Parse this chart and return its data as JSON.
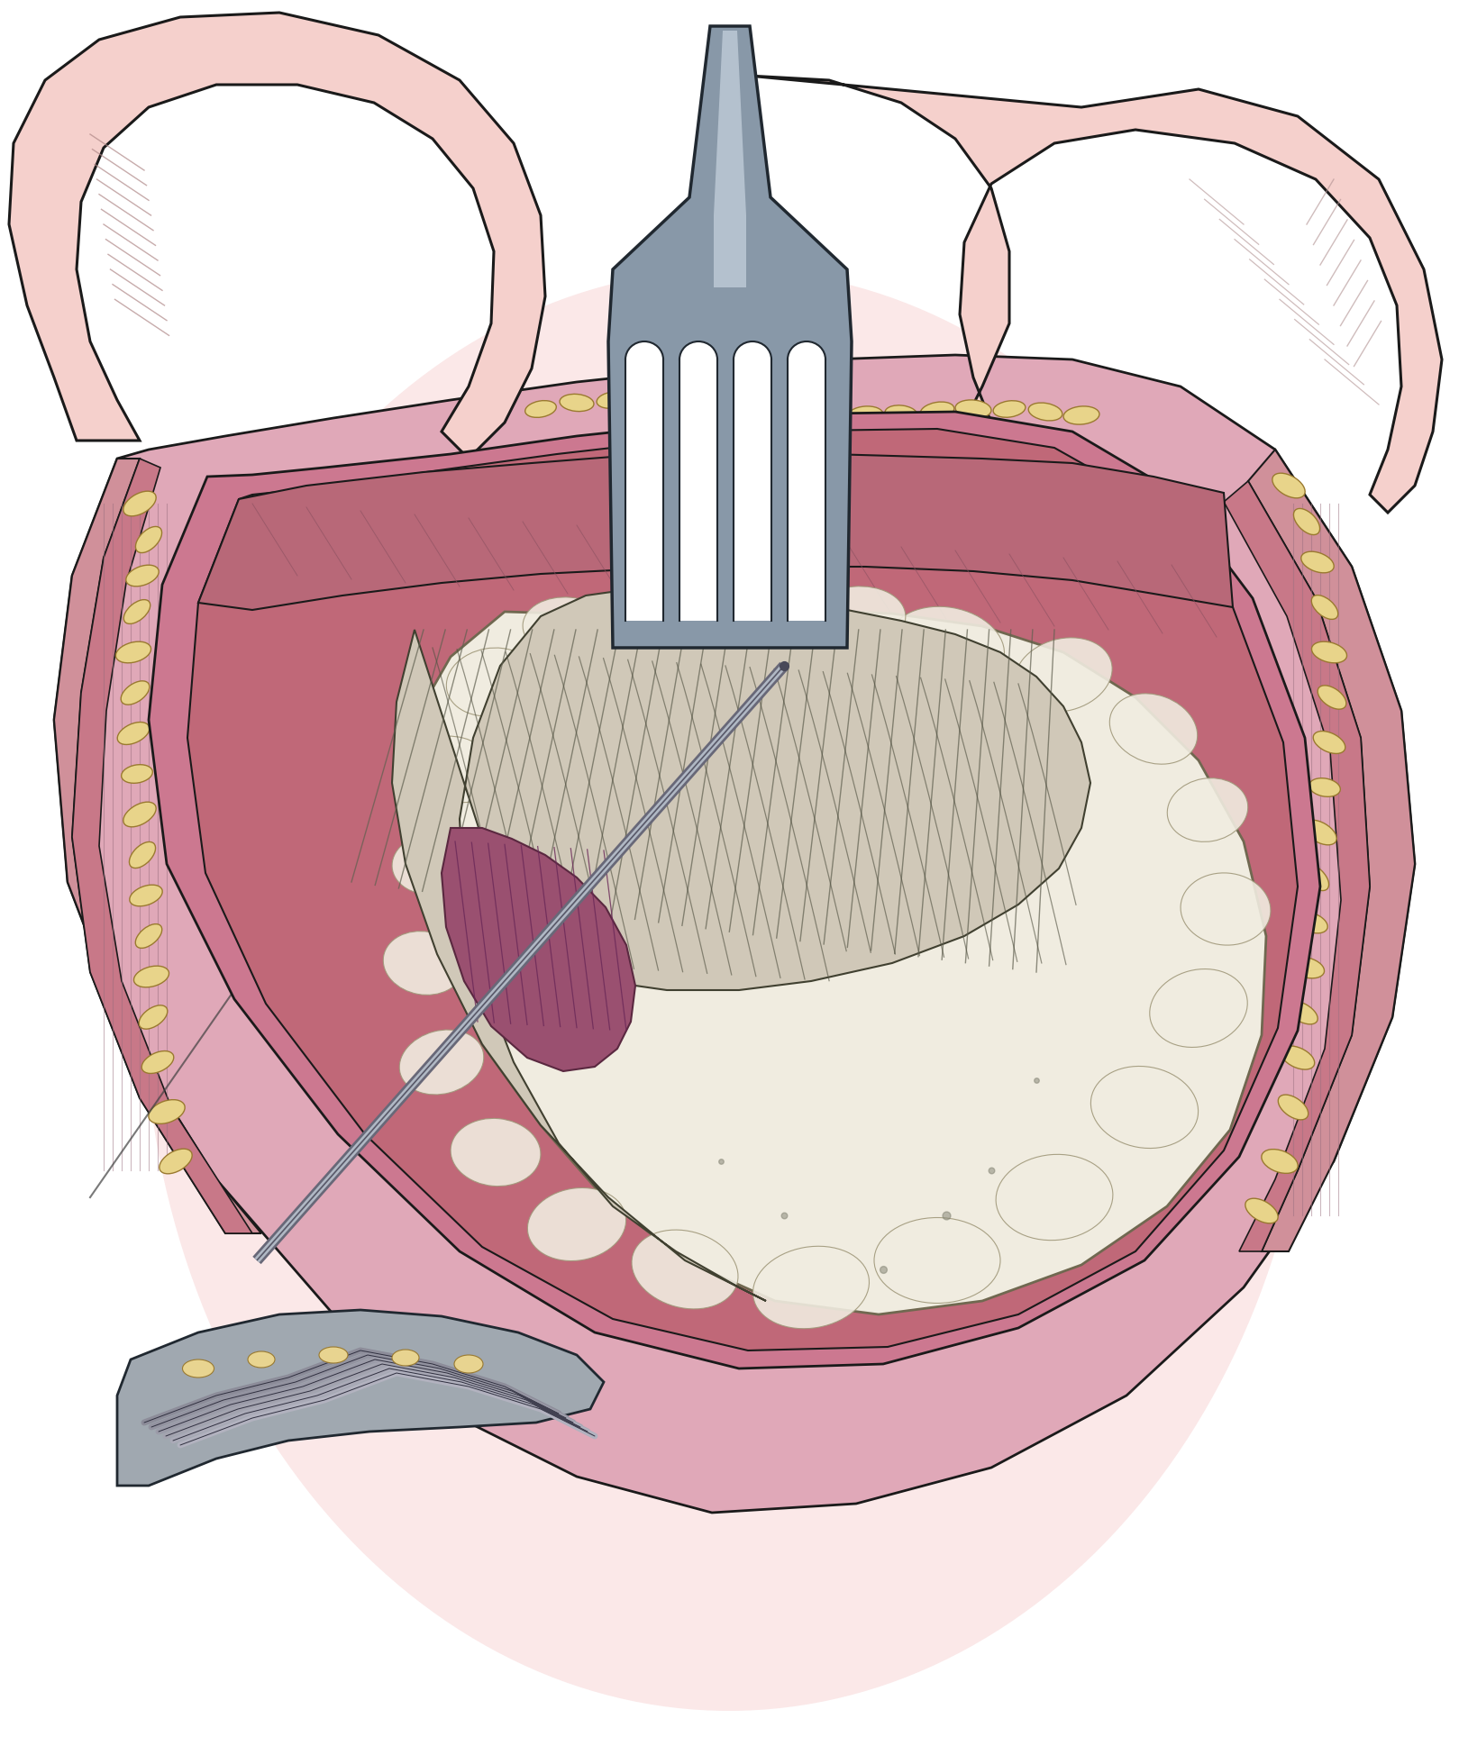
{
  "bg_color": "#ffffff",
  "fig_width": 16.19,
  "fig_height": 19.49,
  "skin_color": "#f5d0cc",
  "skin_outline": "#222222",
  "dura_pink": "#c8708a",
  "dura_light": "#d890a0",
  "wound_pink": "#cc8899",
  "bone_cream": "#e8d0a0",
  "adipose_color": "#e8d090",
  "adipose_outline": "#a08828",
  "abscess_white": "#f0ede0",
  "abscess_outline": "#888060",
  "brain_gray": "#c8c0b0",
  "brain_dark": "#707060",
  "purple_color": "#9a5070",
  "purple_outline": "#5a2040",
  "retractor_gray": "#909098",
  "retractor_light": "#c0c8d4",
  "retractor_dark": "#404850",
  "pink_glow": "#fce8e8",
  "line_color": "#1a1a1a"
}
